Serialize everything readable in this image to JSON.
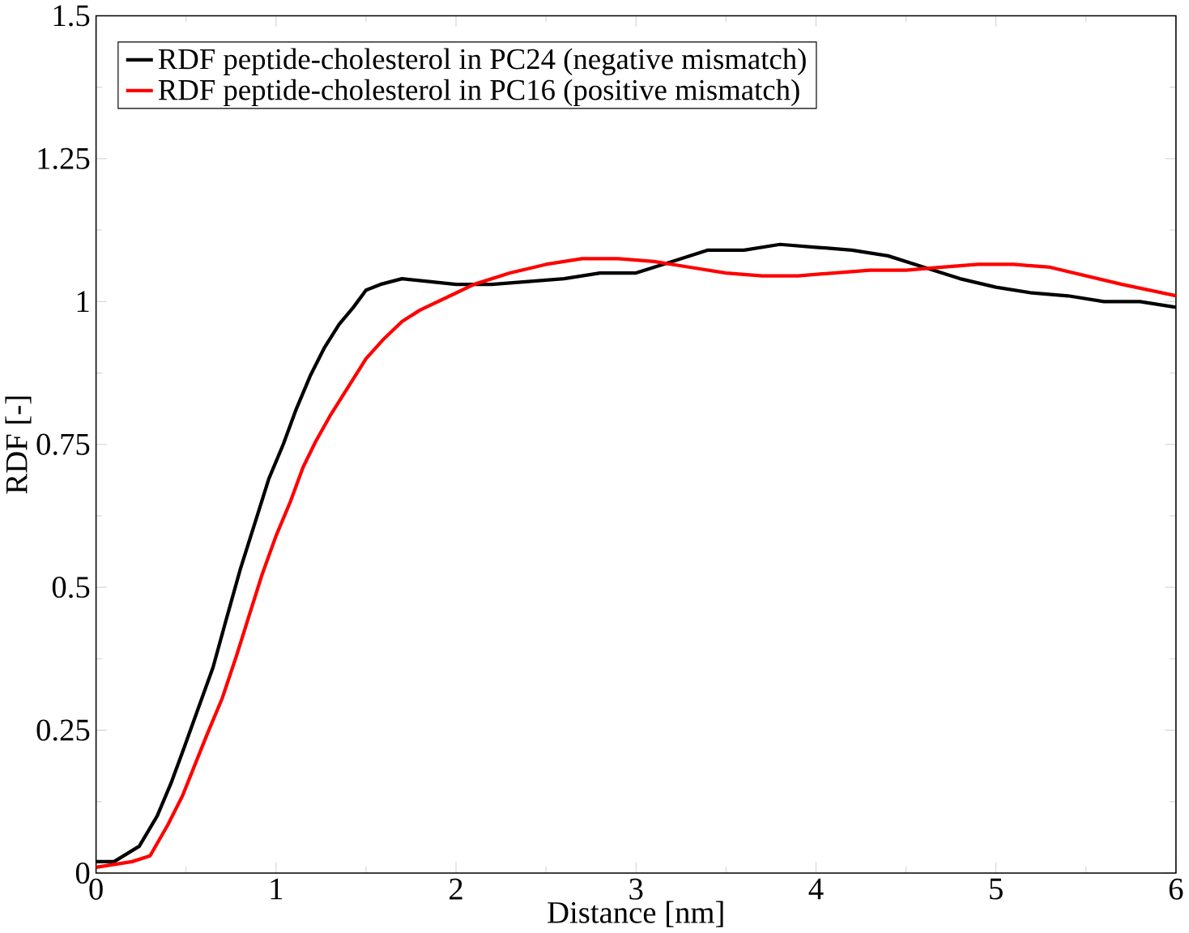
{
  "chart_data": {
    "type": "line",
    "xlabel": "Distance [nm]",
    "ylabel": "RDF [-]",
    "xlim": [
      0,
      6
    ],
    "ylim": [
      0,
      1.5
    ],
    "xticks": [
      0,
      1,
      2,
      3,
      4,
      5,
      6
    ],
    "yticks": [
      0,
      0.25,
      0.5,
      0.75,
      1,
      1.25,
      1.5
    ],
    "legend": "top left",
    "marker": "none",
    "line_style": "solid",
    "series": [
      {
        "name": "RDF peptide-cholesterol in PC24 (negative mismatch)",
        "color": "#000000",
        "x": [
          0,
          0.1,
          0.24,
          0.34,
          0.42,
          0.49,
          0.57,
          0.65,
          0.72,
          0.8,
          0.88,
          0.96,
          1.04,
          1.11,
          1.19,
          1.27,
          1.35,
          1.43,
          1.5,
          1.58,
          1.7,
          1.85,
          2.0,
          2.2,
          2.4,
          2.6,
          2.8,
          3.0,
          3.2,
          3.4,
          3.6,
          3.8,
          4.0,
          4.2,
          4.4,
          4.6,
          4.8,
          5.0,
          5.2,
          5.4,
          5.6,
          5.8,
          6.0
        ],
        "values": [
          0.02,
          0.02,
          0.047,
          0.1,
          0.16,
          0.22,
          0.29,
          0.36,
          0.44,
          0.53,
          0.61,
          0.69,
          0.75,
          0.81,
          0.87,
          0.92,
          0.96,
          0.99,
          1.02,
          1.03,
          1.04,
          1.035,
          1.03,
          1.03,
          1.035,
          1.04,
          1.05,
          1.05,
          1.07,
          1.09,
          1.09,
          1.1,
          1.095,
          1.09,
          1.08,
          1.06,
          1.04,
          1.025,
          1.015,
          1.01,
          1.0,
          1.0,
          0.99
        ]
      },
      {
        "name": "RDF peptide-cholesterol in PC16 (positive mismatch)",
        "color": "#ff0000",
        "x": [
          0,
          0.1,
          0.2,
          0.3,
          0.4,
          0.48,
          0.55,
          0.62,
          0.7,
          0.78,
          0.85,
          0.92,
          1.0,
          1.08,
          1.15,
          1.22,
          1.3,
          1.4,
          1.5,
          1.6,
          1.7,
          1.8,
          1.9,
          2.0,
          2.1,
          2.2,
          2.3,
          2.5,
          2.7,
          2.9,
          3.1,
          3.3,
          3.5,
          3.7,
          3.9,
          4.1,
          4.3,
          4.5,
          4.7,
          4.9,
          5.1,
          5.3,
          5.5,
          5.7,
          6.0
        ],
        "values": [
          0.01,
          0.015,
          0.02,
          0.03,
          0.085,
          0.135,
          0.19,
          0.245,
          0.305,
          0.38,
          0.45,
          0.52,
          0.59,
          0.65,
          0.71,
          0.755,
          0.8,
          0.85,
          0.9,
          0.935,
          0.965,
          0.985,
          1.0,
          1.015,
          1.03,
          1.04,
          1.05,
          1.065,
          1.075,
          1.075,
          1.07,
          1.06,
          1.05,
          1.045,
          1.045,
          1.05,
          1.055,
          1.055,
          1.06,
          1.065,
          1.065,
          1.06,
          1.045,
          1.03,
          1.01
        ]
      }
    ]
  }
}
